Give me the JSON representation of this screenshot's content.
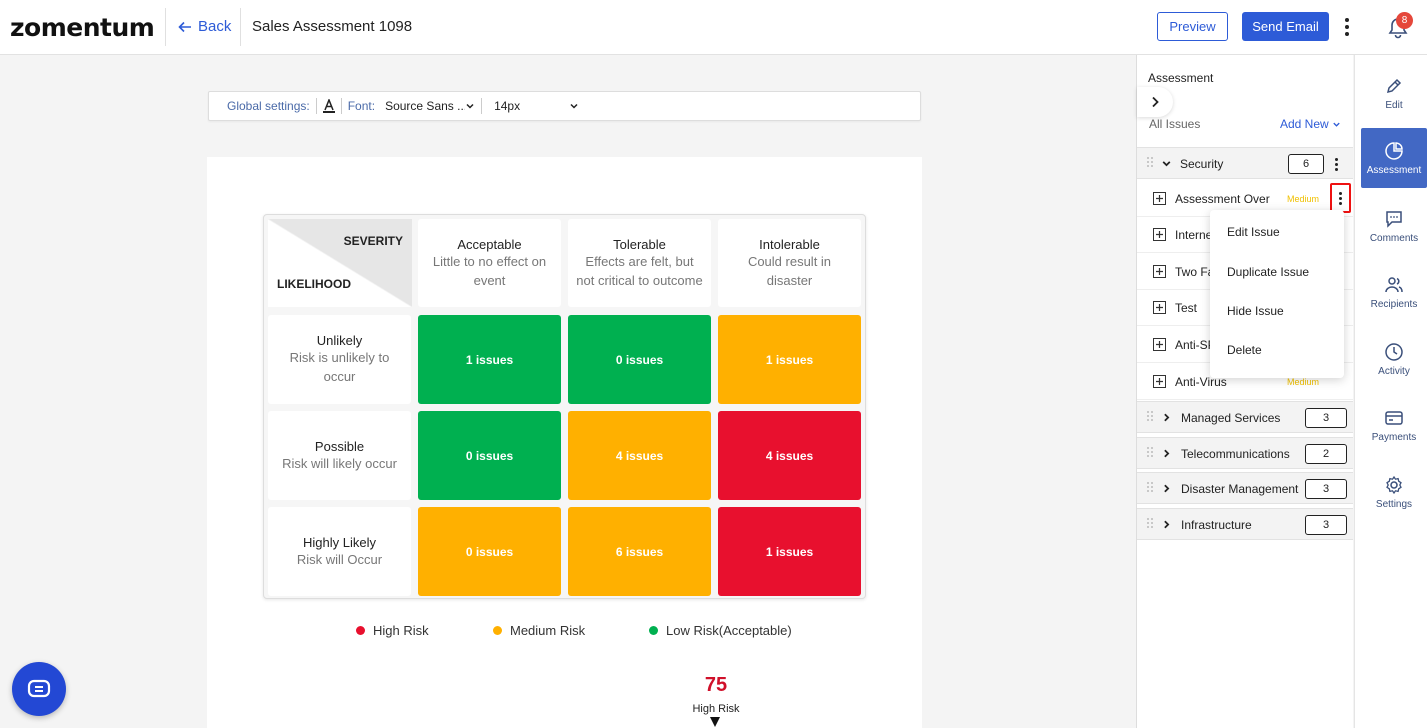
{
  "header": {
    "logo": "zomentum",
    "back_label": "Back",
    "title": "Sales Assessment 1098",
    "preview_label": "Preview",
    "send_label": "Send Email",
    "notification_count": "8"
  },
  "toolbar": {
    "global_label": "Global settings:",
    "font_label": "Font:",
    "font_value": "Source Sans ...",
    "size_value": "14px"
  },
  "matrix": {
    "severity_label": "SEVERITY",
    "likelihood_label": "LIKELIHOOD",
    "columns": [
      {
        "title": "Acceptable",
        "desc": "Little to no effect on event"
      },
      {
        "title": "Tolerable",
        "desc": "Effects are felt, but not critical to outcome"
      },
      {
        "title": "Intolerable",
        "desc": "Could result in disaster"
      }
    ],
    "rows": [
      {
        "title": "Unlikely",
        "desc": "Risk is unlikely to occur",
        "cells": [
          "1 issues",
          "0 issues",
          "1 issues"
        ]
      },
      {
        "title": "Possible",
        "desc": "Risk will likely occur",
        "cells": [
          "0 issues",
          "4 issues",
          "4 issues"
        ]
      },
      {
        "title": "Highly Likely",
        "desc": "Risk will Occur",
        "cells": [
          "0 issues",
          "6 issues",
          "1 issues"
        ]
      }
    ],
    "colors": {
      "low": "#00b050",
      "medium": "#ffb000",
      "high": "#e8102e"
    }
  },
  "legend": {
    "high": "High Risk",
    "medium": "Medium Risk",
    "low": "Low Risk(Acceptable)"
  },
  "score": {
    "value": "75",
    "label": "High Risk"
  },
  "panel": {
    "title": "Assessment",
    "all_issues": "All Issues",
    "add_new": "Add New",
    "security": {
      "name": "Security",
      "count": "6"
    },
    "issues": [
      {
        "name": "Assessment Over",
        "level": "Medium"
      },
      {
        "name": "Interne",
        "level": ""
      },
      {
        "name": "Two Fa",
        "level": ""
      },
      {
        "name": "Test",
        "level": ""
      },
      {
        "name": "Anti-SP",
        "level": ""
      },
      {
        "name": "Anti-Virus",
        "level": "Medium"
      }
    ],
    "categories": [
      {
        "name": "Managed Services",
        "count": "3"
      },
      {
        "name": "Telecommunications",
        "count": "2"
      },
      {
        "name": "Disaster Management",
        "count": "3"
      },
      {
        "name": "Infrastructure",
        "count": "3"
      }
    ]
  },
  "menu": {
    "edit": "Edit Issue",
    "duplicate": "Duplicate Issue",
    "hide": "Hide Issue",
    "delete": "Delete"
  },
  "rail": {
    "edit": "Edit",
    "assessment": "Assessment",
    "comments": "Comments",
    "recipients": "Recipients",
    "activity": "Activity",
    "payments": "Payments",
    "settings": "Settings"
  }
}
